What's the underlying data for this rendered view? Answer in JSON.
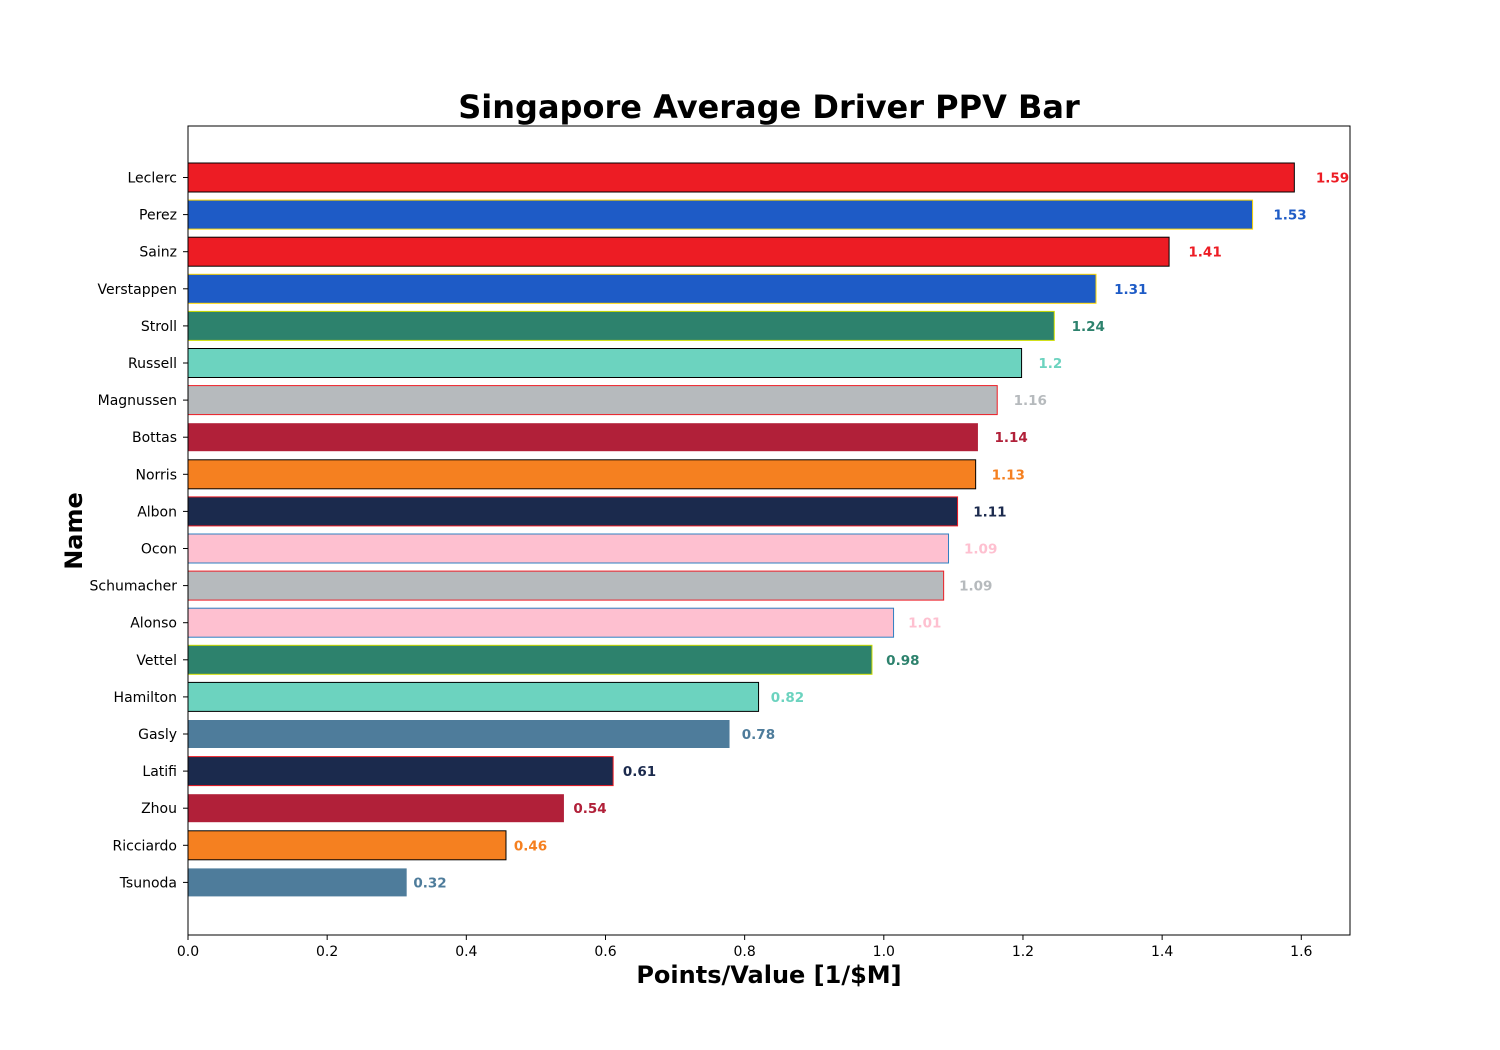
{
  "chart_data": {
    "type": "bar",
    "orientation": "horizontal",
    "title": "Singapore Average Driver PPV Bar",
    "xlabel": "Points/Value [1/$M]",
    "ylabel": "Name",
    "xlim": [
      0,
      1.67
    ],
    "xticks": [
      "0.0",
      "0.2",
      "0.4",
      "0.6",
      "0.8",
      "1.0",
      "1.2",
      "1.4",
      "1.6"
    ],
    "grid": false,
    "legend": "none",
    "bars": [
      {
        "name": "Leclerc",
        "value": 1.59,
        "label": "1.59",
        "fill": "#ED1C24",
        "edge": "#000000"
      },
      {
        "name": "Perez",
        "value": 1.53,
        "label": "1.53",
        "fill": "#1E5BC6",
        "edge": "#FFD700"
      },
      {
        "name": "Sainz",
        "value": 1.41,
        "label": "1.41",
        "fill": "#ED1C24",
        "edge": "#000000"
      },
      {
        "name": "Verstappen",
        "value": 1.305,
        "label": "1.31",
        "fill": "#1E5BC6",
        "edge": "#FFD700"
      },
      {
        "name": "Stroll",
        "value": 1.245,
        "label": "1.24",
        "fill": "#2D826D",
        "edge": "#CEDC00"
      },
      {
        "name": "Russell",
        "value": 1.198,
        "label": "1.2",
        "fill": "#6CD3BF",
        "edge": "#000000"
      },
      {
        "name": "Magnussen",
        "value": 1.163,
        "label": "1.16",
        "fill": "#B6BABD",
        "edge": "#ED1C24"
      },
      {
        "name": "Bottas",
        "value": 1.136,
        "label": "1.14",
        "fill": "#B12039",
        "edge": "#FFFFFF"
      },
      {
        "name": "Norris",
        "value": 1.132,
        "label": "1.13",
        "fill": "#F58020",
        "edge": "#000000"
      },
      {
        "name": "Albon",
        "value": 1.106,
        "label": "1.11",
        "fill": "#1B2A4D",
        "edge": "#ED1C24"
      },
      {
        "name": "Ocon",
        "value": 1.093,
        "label": "1.09",
        "fill": "#FEC0D0",
        "edge": "#2F7FC1"
      },
      {
        "name": "Schumacher",
        "value": 1.086,
        "label": "1.09",
        "fill": "#B6BABD",
        "edge": "#ED1C24"
      },
      {
        "name": "Alonso",
        "value": 1.014,
        "label": "1.01",
        "fill": "#FEC0D0",
        "edge": "#2F7FC1"
      },
      {
        "name": "Vettel",
        "value": 0.983,
        "label": "0.98",
        "fill": "#2D826D",
        "edge": "#CEDC00"
      },
      {
        "name": "Hamilton",
        "value": 0.82,
        "label": "0.82",
        "fill": "#6CD3BF",
        "edge": "#000000"
      },
      {
        "name": "Gasly",
        "value": 0.779,
        "label": "0.78",
        "fill": "#4E7C9B",
        "edge": "#FFFFFF"
      },
      {
        "name": "Latifi",
        "value": 0.611,
        "label": "0.61",
        "fill": "#1B2A4D",
        "edge": "#ED1C24"
      },
      {
        "name": "Zhou",
        "value": 0.541,
        "label": "0.54",
        "fill": "#B12039",
        "edge": "#FFFFFF"
      },
      {
        "name": "Ricciardo",
        "value": 0.457,
        "label": "0.46",
        "fill": "#F58020",
        "edge": "#000000"
      },
      {
        "name": "Tsunoda",
        "value": 0.315,
        "label": "0.32",
        "fill": "#4E7C9B",
        "edge": "#FFFFFF"
      }
    ]
  }
}
